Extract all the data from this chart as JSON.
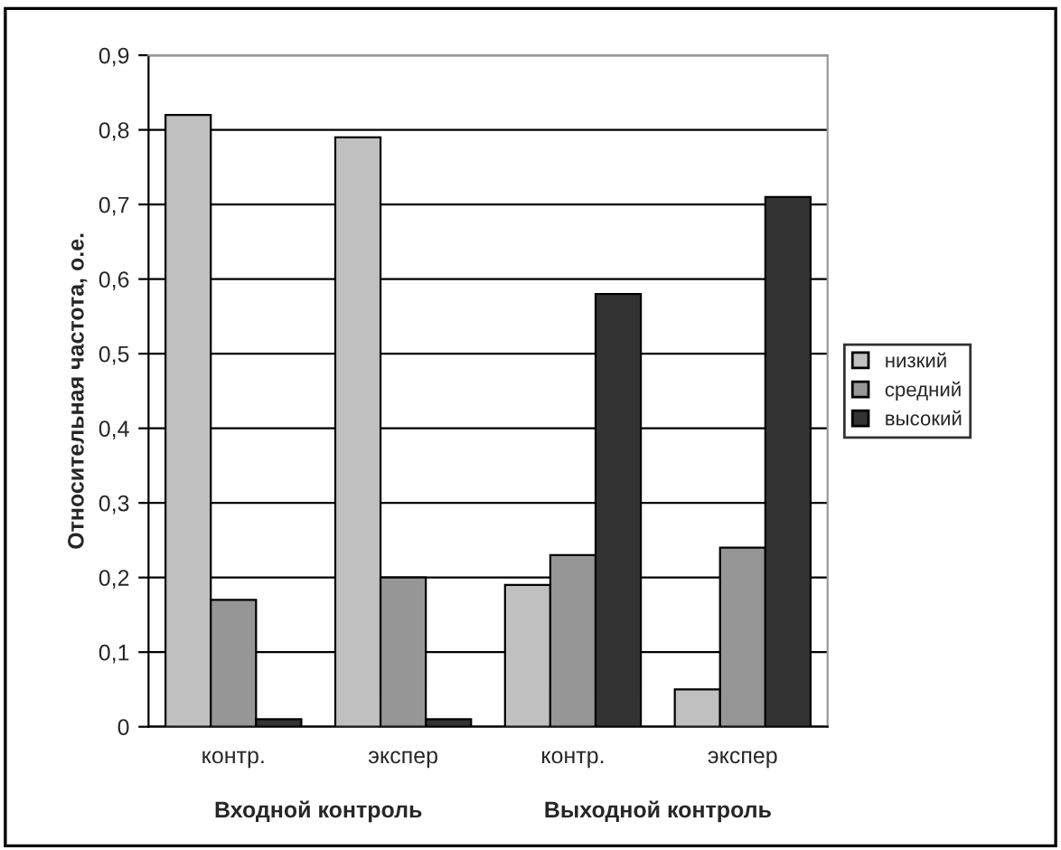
{
  "chart_data": {
    "type": "bar",
    "ylabel": "Относительная частота, о.е.",
    "categories": [
      "контр.",
      "экспер",
      "контр.",
      "экспер"
    ],
    "series": [
      {
        "name": "низкий",
        "color": "#c0c0c0",
        "values": [
          0.82,
          0.79,
          0.19,
          0.05
        ]
      },
      {
        "name": "средний",
        "color": "#969696",
        "values": [
          0.17,
          0.2,
          0.23,
          0.24
        ]
      },
      {
        "name": "высокий",
        "color": "#333333",
        "values": [
          0.01,
          0.01,
          0.58,
          0.71
        ]
      }
    ],
    "ylim": [
      0,
      0.9
    ],
    "yticks": [
      0,
      {
        "value": 0.1,
        "label": "0,1"
      },
      {
        "value": 0.2,
        "label": "0,2"
      },
      {
        "value": 0.3,
        "label": "0,3"
      },
      {
        "value": 0.4,
        "label": "0,4"
      },
      {
        "value": 0.5,
        "label": "0,5"
      },
      {
        "value": 0.6,
        "label": "0,6"
      },
      {
        "value": 0.7,
        "label": "0,7"
      },
      {
        "value": 0.8,
        "label": "0,8"
      },
      {
        "value": 0.9,
        "label": "0,9"
      }
    ],
    "annotations": [
      "Входной контроль",
      "Выходной контроль"
    ],
    "grid": "y",
    "legend": "right"
  }
}
